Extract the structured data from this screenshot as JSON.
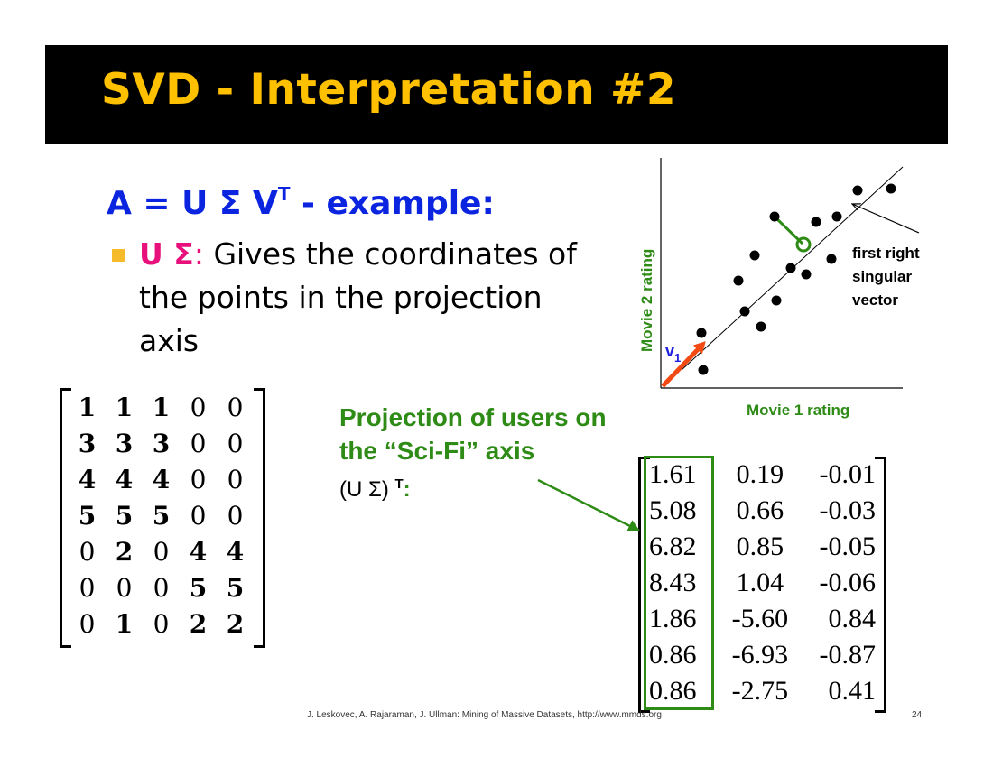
{
  "title": "SVD - Interpretation #2",
  "heading": {
    "prefix": "A = U Σ V",
    "superscript": "T",
    "suffix": " - example:"
  },
  "bullet": {
    "lead": "U Σ",
    "colon": ":",
    "text": " Gives the coordinates of the points in the projection axis"
  },
  "matrix_a": {
    "rows": [
      [
        {
          "v": "1",
          "b": true
        },
        {
          "v": "1",
          "b": true
        },
        {
          "v": "1",
          "b": true
        },
        {
          "v": "0",
          "b": false
        },
        {
          "v": "0",
          "b": false
        }
      ],
      [
        {
          "v": "3",
          "b": true
        },
        {
          "v": "3",
          "b": true
        },
        {
          "v": "3",
          "b": true
        },
        {
          "v": "0",
          "b": false
        },
        {
          "v": "0",
          "b": false
        }
      ],
      [
        {
          "v": "4",
          "b": true
        },
        {
          "v": "4",
          "b": true
        },
        {
          "v": "4",
          "b": true
        },
        {
          "v": "0",
          "b": false
        },
        {
          "v": "0",
          "b": false
        }
      ],
      [
        {
          "v": "5",
          "b": true
        },
        {
          "v": "5",
          "b": true
        },
        {
          "v": "5",
          "b": true
        },
        {
          "v": "0",
          "b": false
        },
        {
          "v": "0",
          "b": false
        }
      ],
      [
        {
          "v": "0",
          "b": false
        },
        {
          "v": "2",
          "b": true
        },
        {
          "v": "0",
          "b": false
        },
        {
          "v": "4",
          "b": true
        },
        {
          "v": "4",
          "b": true
        }
      ],
      [
        {
          "v": "0",
          "b": false
        },
        {
          "v": "0",
          "b": false
        },
        {
          "v": "0",
          "b": false
        },
        {
          "v": "5",
          "b": true
        },
        {
          "v": "5",
          "b": true
        }
      ],
      [
        {
          "v": "0",
          "b": false
        },
        {
          "v": "1",
          "b": true
        },
        {
          "v": "0",
          "b": false
        },
        {
          "v": "2",
          "b": true
        },
        {
          "v": "2",
          "b": true
        }
      ]
    ]
  },
  "projection": {
    "text": "Projection of users on the “Sci-Fi” axis",
    "formula": "(U Σ)",
    "formula_sup": "T",
    "formula_colon": ":"
  },
  "matrix_b": {
    "rows": [
      [
        "1.61",
        "0.19",
        "-0.01"
      ],
      [
        "5.08",
        "0.66",
        "-0.03"
      ],
      [
        "6.82",
        "0.85",
        "-0.05"
      ],
      [
        "8.43",
        "1.04",
        "-0.06"
      ],
      [
        "1.86",
        "-5.60",
        "0.84"
      ],
      [
        "0.86",
        "-6.93",
        "-0.87"
      ],
      [
        "0.86",
        "-2.75",
        "0.41"
      ]
    ]
  },
  "diagram": {
    "x_label": "Movie 1 rating",
    "y_label": "Movie 2 rating",
    "annotation": [
      "first right",
      "singular",
      "vector"
    ],
    "vector_label": "v",
    "vector_sub": "1",
    "colors": {
      "green": "#2e8b16",
      "arrow": "#f24a12",
      "blue": "#2020e0"
    }
  },
  "footer": "J. Leskovec, A. Rajaraman, J. Ullman: Mining of Massive Datasets, http://www.mmds.org",
  "page_number": "24"
}
